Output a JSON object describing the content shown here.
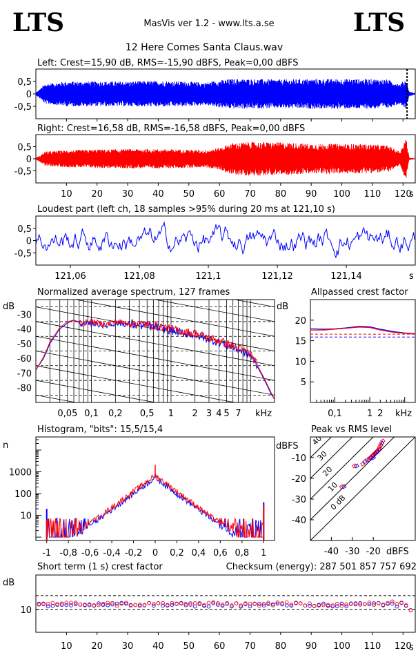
{
  "header": {
    "logo_left": "LTS",
    "logo_right": "LTS",
    "app_title": "MasVis ver 1.2 - www.lts.a.se",
    "file_name": "12 Here Comes Santa Claus.wav"
  },
  "colors": {
    "left": "#0000ff",
    "right": "#ff0000",
    "grid": "#000000"
  },
  "chart_data": [
    {
      "id": "left_waveform",
      "type": "area",
      "title": "Left: Crest=15,90 dB, RMS=-15,90 dBFS, Peak=0,00 dBFS",
      "ylim": [
        -1,
        1
      ],
      "y_ticks": [
        "0,5",
        "0",
        "-0,5"
      ],
      "xlim": [
        0,
        124
      ],
      "series": [
        {
          "name": "Left",
          "envelope_t": [
            0,
            1,
            3,
            10,
            20,
            30,
            40,
            50,
            55,
            60,
            64,
            70,
            80,
            90,
            100,
            110,
            115,
            119,
            121,
            122,
            124
          ],
          "envelope_amp": [
            0.05,
            0.15,
            0.4,
            0.5,
            0.5,
            0.5,
            0.52,
            0.5,
            0.45,
            0.55,
            0.6,
            0.6,
            0.58,
            0.6,
            0.6,
            0.6,
            0.58,
            0.4,
            0.6,
            0.1,
            0.02
          ]
        }
      ],
      "marker_t": 121.1
    },
    {
      "id": "right_waveform",
      "type": "area",
      "title": "Right: Crest=16,58 dB, RMS=-16,58 dBFS, Peak=0,00 dBFS",
      "ylim": [
        -1,
        1
      ],
      "y_ticks": [
        "0,5",
        "0",
        "-0,5"
      ],
      "xlim": [
        0,
        124
      ],
      "x_ticks": [
        "10",
        "20",
        "30",
        "40",
        "50",
        "60",
        "70",
        "80",
        "90",
        "100",
        "110",
        "120"
      ],
      "x_unit": "s",
      "series": [
        {
          "name": "Right",
          "envelope_t": [
            0,
            1,
            3,
            10,
            20,
            30,
            40,
            50,
            55,
            60,
            64,
            70,
            80,
            90,
            100,
            110,
            115,
            119,
            121,
            122,
            124
          ],
          "envelope_amp": [
            0.05,
            0.1,
            0.3,
            0.35,
            0.38,
            0.4,
            0.4,
            0.38,
            0.35,
            0.45,
            0.65,
            0.7,
            0.68,
            0.62,
            0.62,
            0.6,
            0.55,
            0.3,
            0.9,
            0.05,
            0.02
          ]
        }
      ]
    },
    {
      "id": "loudest_part",
      "type": "line",
      "title": "Loudest part (left  ch, 18 samples >95% during 20 ms at 121,10 s)",
      "ylim": [
        -1,
        1
      ],
      "y_ticks": [
        "0,5",
        "0",
        "-0,5"
      ],
      "xlim": [
        121.05,
        121.16
      ],
      "x_ticks": [
        "121,06",
        "121,08",
        "121,1",
        "121,12",
        "121,14"
      ],
      "x_unit": "s"
    },
    {
      "id": "spectrum",
      "type": "line",
      "title": "Normalized average spectrum, 127 frames",
      "ylabel": "dB",
      "y_ticks": [
        "-30",
        "-40",
        "-50",
        "-60",
        "-70",
        "-80"
      ],
      "ylim": [
        -90,
        -20
      ],
      "x_ticks": [
        "0,05",
        "0,1",
        "0,2",
        "0,5",
        "1",
        "2",
        "3",
        "4",
        "5",
        "7"
      ],
      "x_unit": "kHz",
      "xlim_khz": [
        0.02,
        20
      ],
      "series": [
        {
          "name": "Left",
          "f": [
            0.02,
            0.025,
            0.03,
            0.04,
            0.05,
            0.06,
            0.08,
            0.1,
            0.15,
            0.2,
            0.3,
            0.5,
            0.7,
            1,
            1.5,
            2,
            3,
            4,
            5,
            7,
            10,
            12,
            15,
            18,
            20
          ],
          "db": [
            -68,
            -60,
            -50,
            -40,
            -36,
            -34,
            -37,
            -36,
            -38,
            -36,
            -37,
            -38,
            -39,
            -41,
            -43,
            -44,
            -47,
            -49,
            -51,
            -54,
            -58,
            -65,
            -75,
            -84,
            -88
          ]
        },
        {
          "name": "Right",
          "f": [
            0.02,
            0.025,
            0.03,
            0.04,
            0.05,
            0.06,
            0.08,
            0.1,
            0.15,
            0.2,
            0.3,
            0.5,
            0.7,
            1,
            1.5,
            2,
            3,
            4,
            5,
            7,
            10,
            12,
            15,
            18,
            20
          ],
          "db": [
            -68,
            -59,
            -49,
            -39,
            -35,
            -34,
            -36,
            -35,
            -37,
            -35,
            -36,
            -37,
            -38,
            -40,
            -42,
            -43,
            -46,
            -48,
            -50,
            -53,
            -57,
            -64,
            -74,
            -83,
            -88
          ]
        }
      ]
    },
    {
      "id": "allpassed_crest",
      "type": "line",
      "title": "Allpassed crest factor",
      "ylabel": "dB",
      "y_ticks": [
        "20",
        "15",
        "10",
        "5"
      ],
      "ylim": [
        0,
        25
      ],
      "x_ticks": [
        "0,1",
        "1",
        "2"
      ],
      "x_unit": "kHz",
      "series": [
        {
          "name": "Left",
          "f": [
            0.02,
            0.05,
            0.1,
            0.2,
            0.5,
            1,
            2,
            5,
            10,
            20
          ],
          "db": [
            17.9,
            17.8,
            17.9,
            18.1,
            18.5,
            18.4,
            17.8,
            17.2,
            16.9,
            16.7
          ]
        },
        {
          "name": "Right",
          "f": [
            0.02,
            0.05,
            0.1,
            0.2,
            0.5,
            1,
            2,
            5,
            10,
            20
          ],
          "db": [
            17.6,
            17.6,
            17.8,
            18.0,
            18.3,
            18.2,
            17.6,
            17.0,
            16.8,
            16.6
          ]
        }
      ],
      "ref_lines": [
        15.9,
        16.6
      ]
    },
    {
      "id": "histogram",
      "type": "line",
      "title": "Histogram, \"bits\": 15,5/15,4",
      "ylabel": "n",
      "y_ticks": [
        "1000",
        "100",
        "10"
      ],
      "ylim_log": [
        0.7,
        40000
      ],
      "x_ticks": [
        "-1",
        "-0,8",
        "-0,6",
        "-0,4",
        "-0,2",
        "0",
        "0,2",
        "0,4",
        "0,6",
        "0,8",
        "1"
      ],
      "xlim": [
        -1.1,
        1.1
      ]
    },
    {
      "id": "peak_vs_rms",
      "type": "scatter",
      "title": "Peak vs RMS level",
      "ylabel": "dBFS",
      "xlabel": "dBFS",
      "y_ticks": [
        "-10",
        "-20",
        "-30",
        "-40"
      ],
      "x_ticks": [
        "-40",
        "-30",
        "-20"
      ],
      "diag_labels": [
        "40",
        "30",
        "20",
        "10",
        "0 dB"
      ],
      "xlim": [
        -50,
        0
      ],
      "ylim": [
        -50,
        0
      ],
      "series": [
        {
          "name": "Left",
          "x": [
            -34,
            -28,
            -24,
            -22,
            -21,
            -20,
            -19,
            -18,
            -17,
            -16.5,
            -16,
            -20,
            -18.5
          ],
          "y": [
            -24,
            -14,
            -12,
            -11,
            -10,
            -9,
            -8,
            -7,
            -6,
            -4,
            -3,
            -10,
            -7.5
          ]
        },
        {
          "name": "Right",
          "x": [
            -35,
            -29,
            -25,
            -23,
            -21.5,
            -20.5,
            -19.5,
            -18.5,
            -17.5,
            -17,
            -16.5,
            -15.5
          ],
          "y": [
            -24,
            -14,
            -13,
            -11,
            -10,
            -9,
            -8,
            -7,
            -6,
            -5,
            -4,
            -2
          ]
        }
      ]
    },
    {
      "id": "short_term_crest",
      "type": "scatter",
      "title": "Short term (1 s) crest factor",
      "checksum": "Checksum (energy):   287 501 857 757 692",
      "ylabel": "dB",
      "y_ticks": [
        "10"
      ],
      "ylim": [
        0,
        25
      ],
      "xlim": [
        0,
        124
      ],
      "x_ticks": [
        "10",
        "20",
        "30",
        "40",
        "50",
        "60",
        "70",
        "80",
        "90",
        "100",
        "110",
        "120"
      ],
      "x_unit": "s",
      "ref_lines": [
        16,
        10
      ],
      "series": [
        {
          "name": "Left",
          "base": 12.0
        },
        {
          "name": "Right",
          "base": 12.3
        }
      ]
    }
  ]
}
